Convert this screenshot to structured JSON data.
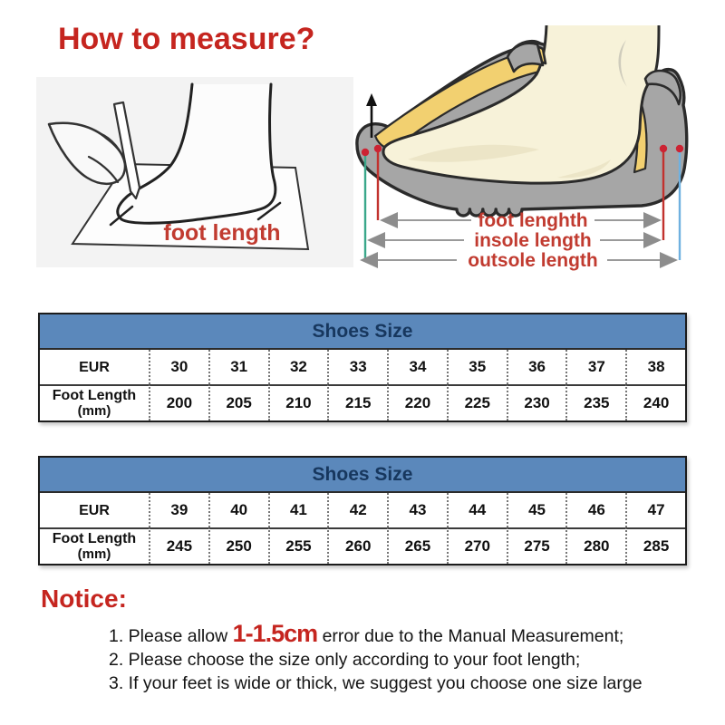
{
  "title": "How to measure?",
  "measure_illustration": {
    "caption": "foot length"
  },
  "shoe_illustration": {
    "labels": {
      "foot": "foot lenghth",
      "insole": "insole length",
      "outsole": "outsole length"
    }
  },
  "size_tables": [
    {
      "title": "Shoes Size",
      "size_system": "EUR",
      "length_label": "Foot Length",
      "length_unit": "(mm)",
      "sizes": [
        "30",
        "31",
        "32",
        "33",
        "34",
        "35",
        "36",
        "37",
        "38"
      ],
      "lengths": [
        "200",
        "205",
        "210",
        "215",
        "220",
        "225",
        "230",
        "235",
        "240"
      ]
    },
    {
      "title": "Shoes Size",
      "size_system": "EUR",
      "length_label": "Foot Length",
      "length_unit": "(mm)",
      "sizes": [
        "39",
        "40",
        "41",
        "42",
        "43",
        "44",
        "45",
        "46",
        "47"
      ],
      "lengths": [
        "245",
        "250",
        "255",
        "260",
        "265",
        "270",
        "275",
        "280",
        "285"
      ]
    }
  ],
  "notice": {
    "title": "Notice:",
    "items": [
      {
        "prefix": "1. Please allow ",
        "highlight": "1-1.5cm",
        "suffix": " error due to the Manual Measurement;"
      },
      {
        "text": "2. Please choose the size only according to your foot length;"
      },
      {
        "text": "3. If your feet is wide or thick, we suggest you choose one size large"
      }
    ]
  },
  "colors": {
    "accent_red": "#c5251f",
    "label_red": "#c13b30",
    "table_header_bg": "#5b88bb",
    "table_header_text": "#17375e",
    "insole_yellow": "#f2d070",
    "shoe_gray": "#a6a6a6",
    "foot_cream": "#f7f2d9",
    "dim_teal": "#3aa78a",
    "dim_blue": "#6fb1e0",
    "dim_red": "#c2322e"
  }
}
